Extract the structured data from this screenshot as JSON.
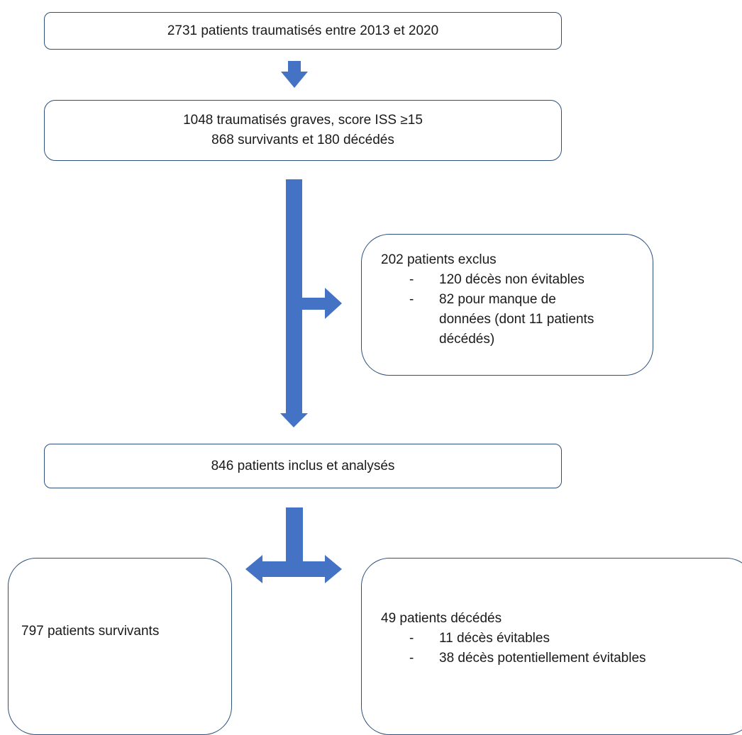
{
  "boxes": {
    "total": {
      "text": "2731 patients traumatisés entre 2013 et 2020"
    },
    "severe": {
      "line1": "1048 traumatisés graves, score ISS ≥15",
      "line2": "868 survivants et 180 décédés"
    },
    "excluded": {
      "title": "202 patients exclus",
      "items": [
        "120 décès non évitables",
        "82 pour manque de données (dont 11 patients décédés)"
      ]
    },
    "included": {
      "text": "846 patients inclus et analysés"
    },
    "survivors": {
      "text": "797 patients survivants"
    },
    "deceased": {
      "title": "49 patients décédés",
      "items": [
        "11 décès évitables",
        "38 décès potentiellement évitables"
      ]
    }
  },
  "colors": {
    "arrow": "#4472c4",
    "border": "#2c4f7c"
  }
}
